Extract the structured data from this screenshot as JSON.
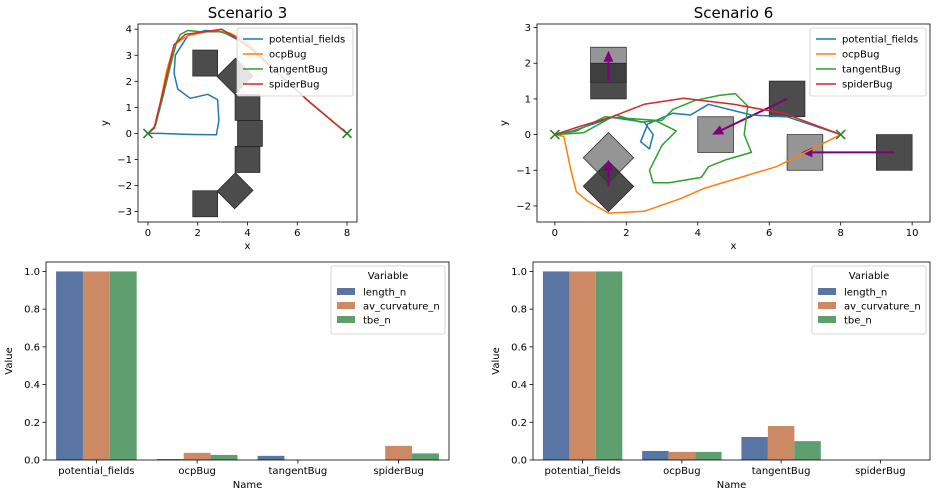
{
  "chart_data": [
    {
      "type": "line",
      "title": "Scenario 3",
      "xlabel": "x",
      "ylabel": "y",
      "xlim": [
        -0.4,
        8.4
      ],
      "ylim": [
        -3.4,
        4.2
      ],
      "xticks": [
        0,
        2,
        4,
        6,
        8
      ],
      "yticks": [
        -3,
        -2,
        -1,
        0,
        1,
        2,
        3,
        4
      ],
      "start": [
        0,
        0
      ],
      "goal": [
        8,
        0
      ],
      "obstacles": [
        {
          "cx": 2.3,
          "cy": 2.7,
          "size": 1.0,
          "angle": 0
        },
        {
          "cx": 3.5,
          "cy": 2.2,
          "size": 1.0,
          "angle": 45
        },
        {
          "cx": 4.0,
          "cy": 1.0,
          "size": 1.0,
          "angle": 0
        },
        {
          "cx": 4.1,
          "cy": 0.0,
          "size": 1.0,
          "angle": 0
        },
        {
          "cx": 4.0,
          "cy": -1.0,
          "size": 1.0,
          "angle": 0
        },
        {
          "cx": 3.5,
          "cy": -2.2,
          "size": 1.0,
          "angle": 45
        },
        {
          "cx": 2.3,
          "cy": -2.7,
          "size": 1.0,
          "angle": 0
        }
      ],
      "series": [
        {
          "name": "potential_fields",
          "color": "#1f77b4",
          "points": [
            [
              0,
              0
            ],
            [
              0.5,
              0
            ],
            [
              1,
              -0.02
            ],
            [
              1.8,
              -0.04
            ],
            [
              2.75,
              -0.05
            ],
            [
              2.85,
              0.5
            ],
            [
              2.8,
              1.3
            ],
            [
              2.4,
              1.5
            ],
            [
              1.7,
              1.35
            ],
            [
              1.2,
              1.7
            ],
            [
              1.05,
              2.3
            ],
            [
              1.1,
              3.0
            ],
            [
              1.6,
              3.75
            ],
            [
              2.3,
              3.95
            ],
            [
              3.0,
              3.9
            ],
            [
              4.0,
              3.4
            ],
            [
              5.0,
              2.5
            ],
            [
              6.5,
              1.2
            ],
            [
              8,
              0
            ]
          ]
        },
        {
          "name": "ocpBug",
          "color": "#ff7f0e",
          "points": [
            [
              0,
              0
            ],
            [
              0.25,
              0.2
            ],
            [
              0.5,
              1.2
            ],
            [
              0.75,
              2.4
            ],
            [
              1.05,
              3.4
            ],
            [
              1.6,
              3.75
            ],
            [
              2.6,
              3.95
            ],
            [
              3.3,
              3.85
            ],
            [
              4.0,
              3.5
            ],
            [
              5.0,
              2.5
            ],
            [
              6.5,
              1.2
            ],
            [
              8,
              0
            ]
          ]
        },
        {
          "name": "tangentBug",
          "color": "#2ca02c",
          "points": [
            [
              0,
              0
            ],
            [
              0.3,
              0.3
            ],
            [
              0.6,
              1.4
            ],
            [
              0.9,
              2.6
            ],
            [
              1.15,
              3.5
            ],
            [
              1.3,
              3.8
            ],
            [
              1.6,
              3.95
            ],
            [
              2.1,
              3.9
            ],
            [
              2.9,
              3.9
            ],
            [
              3.4,
              3.75
            ],
            [
              4.0,
              3.4
            ],
            [
              5.0,
              2.5
            ],
            [
              6.5,
              1.2
            ],
            [
              8,
              0
            ]
          ]
        },
        {
          "name": "spiderBug",
          "color": "#d62728",
          "points": [
            [
              0,
              0
            ],
            [
              0.25,
              0.2
            ],
            [
              0.5,
              1.2
            ],
            [
              0.8,
              2.4
            ],
            [
              1.05,
              3.4
            ],
            [
              1.5,
              3.8
            ],
            [
              2.3,
              3.9
            ],
            [
              2.95,
              4.0
            ],
            [
              3.5,
              3.7
            ],
            [
              4.2,
              3.2
            ],
            [
              5.0,
              2.5
            ],
            [
              6.5,
              1.2
            ],
            [
              8,
              0
            ]
          ]
        }
      ]
    },
    {
      "type": "line",
      "title": "Scenario 6",
      "xlabel": "x",
      "ylabel": "y",
      "xlim": [
        -0.5,
        10.5
      ],
      "ylim": [
        -2.45,
        3.1
      ],
      "xticks": [
        0,
        2,
        4,
        6,
        8,
        10
      ],
      "yticks": [
        -2,
        -1,
        0,
        1,
        2,
        3
      ],
      "start": [
        0,
        0
      ],
      "goal": [
        8,
        0
      ],
      "obstacles": [
        {
          "cx": 1.5,
          "cy": 1.95,
          "size": 1.0,
          "angle": 0,
          "ghost": true
        },
        {
          "cx": 1.5,
          "cy": 1.5,
          "size": 1.0,
          "angle": 0
        },
        {
          "cx": 1.5,
          "cy": -0.65,
          "size": 1.0,
          "angle": 45,
          "ghost": true
        },
        {
          "cx": 1.5,
          "cy": -1.45,
          "size": 1.0,
          "angle": 45
        },
        {
          "cx": 4.5,
          "cy": 0.0,
          "size": 1.0,
          "angle": 0,
          "ghost": true
        },
        {
          "cx": 6.5,
          "cy": 1.0,
          "size": 1.0,
          "angle": 0
        },
        {
          "cx": 7.0,
          "cy": -0.5,
          "size": 1.0,
          "angle": 0,
          "ghost": true
        },
        {
          "cx": 9.5,
          "cy": -0.5,
          "size": 1.0,
          "angle": 0
        }
      ],
      "arrows": [
        {
          "from": [
            1.5,
            1.5
          ],
          "to": [
            1.5,
            2.35
          ]
        },
        {
          "from": [
            1.5,
            -1.45
          ],
          "to": [
            1.5,
            -0.7
          ]
        },
        {
          "from": [
            6.5,
            1.0
          ],
          "to": [
            4.4,
            0.0
          ]
        },
        {
          "from": [
            9.5,
            -0.5
          ],
          "to": [
            6.9,
            -0.5
          ]
        }
      ],
      "series": [
        {
          "name": "potential_fields",
          "color": "#1f77b4",
          "points": [
            [
              0,
              0
            ],
            [
              0.5,
              0.1
            ],
            [
              1.6,
              0.48
            ],
            [
              2.5,
              0.35
            ],
            [
              2.75,
              0.0
            ],
            [
              2.65,
              -0.4
            ],
            [
              2.4,
              -0.2
            ],
            [
              2.6,
              0.3
            ],
            [
              3.3,
              0.6
            ],
            [
              3.8,
              0.55
            ],
            [
              4.3,
              0.85
            ],
            [
              5.5,
              0.55
            ],
            [
              6.5,
              0.5
            ],
            [
              8,
              0
            ]
          ]
        },
        {
          "name": "ocpBug",
          "color": "#ff7f0e",
          "points": [
            [
              0,
              0
            ],
            [
              0.25,
              -0.05
            ],
            [
              0.45,
              -1.0
            ],
            [
              0.6,
              -1.6
            ],
            [
              0.9,
              -1.85
            ],
            [
              1.5,
              -2.2
            ],
            [
              2.5,
              -2.15
            ],
            [
              3.5,
              -1.8
            ],
            [
              4.2,
              -1.5
            ],
            [
              5.2,
              -1.2
            ],
            [
              6.2,
              -0.9
            ],
            [
              7.0,
              -0.5
            ],
            [
              8,
              0
            ]
          ]
        },
        {
          "name": "tangentBug",
          "color": "#2ca02c",
          "points": [
            [
              0,
              0
            ],
            [
              0.6,
              0.1
            ],
            [
              1.4,
              0.5
            ],
            [
              2.8,
              0.4
            ],
            [
              3.4,
              0.1
            ],
            [
              3.0,
              -0.3
            ],
            [
              2.65,
              -1.0
            ],
            [
              2.75,
              -1.35
            ],
            [
              3.2,
              -1.35
            ],
            [
              4.1,
              -1.2
            ],
            [
              4.3,
              -0.9
            ],
            [
              4.8,
              -0.7
            ],
            [
              5.5,
              -0.5
            ],
            [
              5.3,
              0.0
            ],
            [
              5.4,
              0.8
            ],
            [
              5.05,
              1.15
            ],
            [
              4.6,
              1.1
            ],
            [
              3.9,
              0.95
            ],
            [
              3.3,
              0.7
            ],
            [
              3.0,
              0.4
            ],
            [
              2.4,
              0.35
            ],
            [
              1.7,
              0.55
            ],
            [
              0.8,
              0.05
            ],
            [
              0,
              0
            ]
          ]
        },
        {
          "name": "spiderBug",
          "color": "#d62728",
          "points": [
            [
              0,
              0
            ],
            [
              0.6,
              0.2
            ],
            [
              1.6,
              0.5
            ],
            [
              2.5,
              0.85
            ],
            [
              3.6,
              1.02
            ],
            [
              5.0,
              0.85
            ],
            [
              6.4,
              0.6
            ],
            [
              8,
              0
            ]
          ]
        }
      ]
    },
    {
      "type": "bar",
      "title": "",
      "xlabel": "Name",
      "ylabel": "Value",
      "ylim": [
        0,
        1.05
      ],
      "yticks": [
        "0.0",
        "0.2",
        "0.4",
        "0.6",
        "0.8",
        "1.0"
      ],
      "categories": [
        "potential_fields",
        "ocpBug",
        "tangentBug",
        "spiderBug"
      ],
      "legend_title": "Variable",
      "series": [
        {
          "name": "length_n",
          "color": "#5875a4",
          "values": [
            1.0,
            0.005,
            0.022,
            0.0
          ]
        },
        {
          "name": "av_curvature_n",
          "color": "#cc8963",
          "values": [
            1.0,
            0.038,
            0.0,
            0.075
          ]
        },
        {
          "name": "tbe_n",
          "color": "#5f9e6e",
          "values": [
            1.0,
            0.027,
            0.0,
            0.035
          ]
        }
      ]
    },
    {
      "type": "bar",
      "title": "",
      "xlabel": "Name",
      "ylabel": "Value",
      "ylim": [
        0,
        1.05
      ],
      "yticks": [
        "0.0",
        "0.2",
        "0.4",
        "0.6",
        "0.8",
        "1.0"
      ],
      "categories": [
        "potential_fields",
        "ocpBug",
        "tangentBug",
        "spiderBug"
      ],
      "legend_title": "Variable",
      "series": [
        {
          "name": "length_n",
          "color": "#5875a4",
          "values": [
            1.0,
            0.048,
            0.122,
            0.0
          ]
        },
        {
          "name": "av_curvature_n",
          "color": "#cc8963",
          "values": [
            1.0,
            0.043,
            0.18,
            0.0
          ]
        },
        {
          "name": "tbe_n",
          "color": "#5f9e6e",
          "values": [
            1.0,
            0.043,
            0.1,
            0.0
          ]
        }
      ]
    }
  ]
}
